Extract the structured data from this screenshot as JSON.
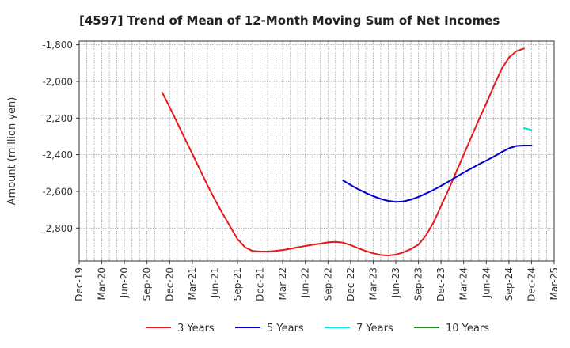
{
  "chart_data": {
    "type": "line",
    "title": "[4597]  Trend of Mean of 12-Month Moving Sum of Net Incomes",
    "xlabel": "",
    "ylabel": "Amount (million yen)",
    "ylim": [
      -2980,
      -1780
    ],
    "yticks": [
      -1800,
      -2000,
      -2200,
      -2400,
      -2600,
      -2800
    ],
    "ytick_labels": [
      "-1,800",
      "-2,000",
      "-2,200",
      "-2,400",
      "-2,600",
      "-2,800"
    ],
    "xticks": [
      "Dec-19",
      "Mar-20",
      "Jun-20",
      "Sep-20",
      "Dec-20",
      "Mar-21",
      "Jun-21",
      "Sep-21",
      "Dec-21",
      "Mar-22",
      "Jun-22",
      "Sep-22",
      "Dec-22",
      "Mar-23",
      "Jun-23",
      "Sep-23",
      "Dec-23",
      "Mar-24",
      "Jun-24",
      "Sep-24",
      "Dec-24",
      "Mar-25"
    ],
    "grid": true,
    "legend_position": "bottom",
    "series": [
      {
        "name": "3 Years",
        "color": "#e41a1c",
        "points": [
          [
            "Nov-20",
            -2060
          ],
          [
            "Dec-20",
            -2140
          ],
          [
            "Jan-21",
            -2225
          ],
          [
            "Feb-21",
            -2310
          ],
          [
            "Mar-21",
            -2395
          ],
          [
            "Apr-21",
            -2480
          ],
          [
            "May-21",
            -2565
          ],
          [
            "Jun-21",
            -2645
          ],
          [
            "Jul-21",
            -2720
          ],
          [
            "Aug-21",
            -2790
          ],
          [
            "Sep-21",
            -2860
          ],
          [
            "Oct-21",
            -2905
          ],
          [
            "Nov-21",
            -2925
          ],
          [
            "Dec-21",
            -2928
          ],
          [
            "Jan-22",
            -2928
          ],
          [
            "Feb-22",
            -2925
          ],
          [
            "Mar-22",
            -2920
          ],
          [
            "Apr-22",
            -2913
          ],
          [
            "May-22",
            -2905
          ],
          [
            "Jun-22",
            -2898
          ],
          [
            "Jul-22",
            -2891
          ],
          [
            "Aug-22",
            -2885
          ],
          [
            "Sep-22",
            -2878
          ],
          [
            "Oct-22",
            -2875
          ],
          [
            "Nov-22",
            -2880
          ],
          [
            "Dec-22",
            -2893
          ],
          [
            "Jan-23",
            -2910
          ],
          [
            "Feb-23",
            -2925
          ],
          [
            "Mar-23",
            -2938
          ],
          [
            "Apr-23",
            -2947
          ],
          [
            "May-23",
            -2950
          ],
          [
            "Jun-23",
            -2945
          ],
          [
            "Jul-23",
            -2933
          ],
          [
            "Aug-23",
            -2915
          ],
          [
            "Sep-23",
            -2890
          ],
          [
            "Oct-23",
            -2840
          ],
          [
            "Nov-23",
            -2770
          ],
          [
            "Dec-23",
            -2680
          ],
          [
            "Jan-24",
            -2590
          ],
          [
            "Feb-24",
            -2495
          ],
          [
            "Mar-24",
            -2400
          ],
          [
            "Apr-24",
            -2305
          ],
          [
            "May-24",
            -2210
          ],
          [
            "Jun-24",
            -2120
          ],
          [
            "Jul-24",
            -2025
          ],
          [
            "Aug-24",
            -1935
          ],
          [
            "Sep-24",
            -1870
          ],
          [
            "Oct-24",
            -1835
          ],
          [
            "Nov-24",
            -1820
          ]
        ]
      },
      {
        "name": "5 Years",
        "color": "#0000cc",
        "points": [
          [
            "Nov-22",
            -2540
          ],
          [
            "Dec-22",
            -2565
          ],
          [
            "Jan-23",
            -2588
          ],
          [
            "Feb-23",
            -2608
          ],
          [
            "Mar-23",
            -2626
          ],
          [
            "Apr-23",
            -2641
          ],
          [
            "May-23",
            -2652
          ],
          [
            "Jun-23",
            -2657
          ],
          [
            "Jul-23",
            -2655
          ],
          [
            "Aug-23",
            -2645
          ],
          [
            "Sep-23",
            -2630
          ],
          [
            "Oct-23",
            -2612
          ],
          [
            "Nov-23",
            -2592
          ],
          [
            "Dec-23",
            -2570
          ],
          [
            "Jan-24",
            -2546
          ],
          [
            "Feb-24",
            -2522
          ],
          [
            "Mar-24",
            -2498
          ],
          [
            "Apr-24",
            -2475
          ],
          [
            "May-24",
            -2453
          ],
          [
            "Jun-24",
            -2432
          ],
          [
            "Jul-24",
            -2410
          ],
          [
            "Aug-24",
            -2387
          ],
          [
            "Sep-24",
            -2365
          ],
          [
            "Oct-24",
            -2352
          ],
          [
            "Nov-24",
            -2350
          ],
          [
            "Dec-24",
            -2350
          ]
        ]
      },
      {
        "name": "7 Years",
        "color": "#00e5e5",
        "points": [
          [
            "Nov-24",
            -2255
          ],
          [
            "Dec-24",
            -2265
          ]
        ]
      },
      {
        "name": "10 Years",
        "color": "#228b22",
        "points": []
      }
    ]
  }
}
